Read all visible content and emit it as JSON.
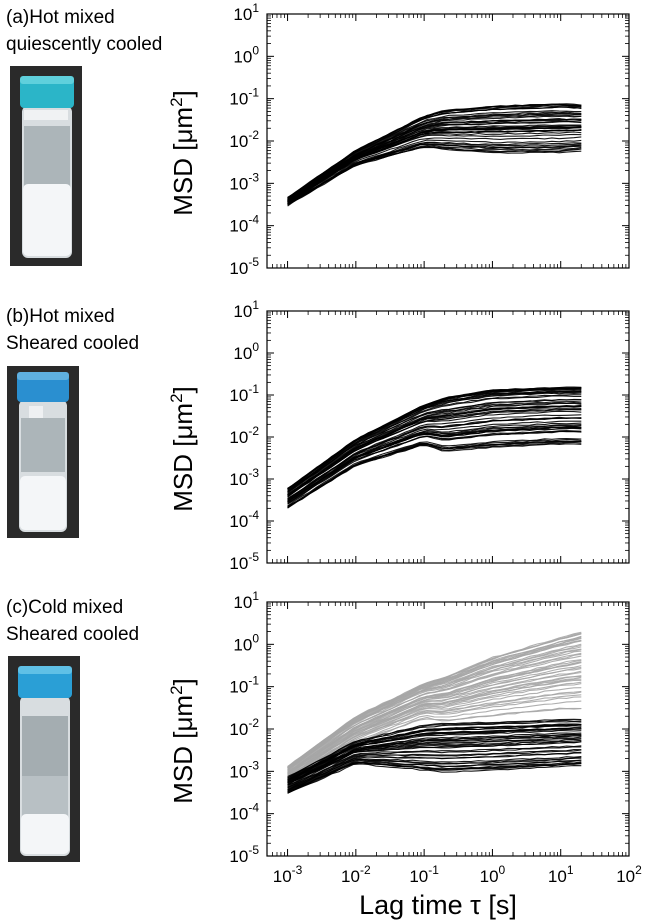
{
  "figure": {
    "panels": [
      {
        "id": "a",
        "label_line1": "(a)Hot mixed",
        "label_line2": "quiescently cooled"
      },
      {
        "id": "b",
        "label_line1": "(b)Hot mixed",
        "label_line2": "Sheared cooled"
      },
      {
        "id": "c",
        "label_line1": "(c)Cold mixed",
        "label_line2": "Sheared cooled"
      }
    ],
    "colors": {
      "black_series": "#000000",
      "gray_series": "#a6a6a6",
      "vial_cap": "#2bb5c8",
      "vial_bg": "#2a2a2a"
    }
  },
  "chart_data": [
    {
      "type": "line",
      "panel": "a",
      "ylabel_base": "MSD [",
      "ylabel_unit": "μm",
      "ylabel_exp": "2",
      "ylabel_tail": "]",
      "xscale": "log",
      "yscale": "log",
      "xlim": [
        0.0005,
        100
      ],
      "ylim": [
        1e-05,
        10
      ],
      "yticks": [
        1e-05,
        0.0001,
        0.001,
        0.01,
        0.1,
        1,
        10
      ],
      "ytick_labels": [
        {
          "base": "10",
          "exp": "-5"
        },
        {
          "base": "10",
          "exp": "-4"
        },
        {
          "base": "10",
          "exp": "-3"
        },
        {
          "base": "10",
          "exp": "-2"
        },
        {
          "base": "10",
          "exp": "-1"
        },
        {
          "base": "10",
          "exp": "0"
        },
        {
          "base": "10",
          "exp": "1"
        }
      ],
      "series": [
        {
          "color": "black",
          "envelope_x": [
            0.001,
            0.01,
            0.1,
            0.2,
            1,
            10,
            20
          ],
          "upper": [
            0.00045,
            0.006,
            0.04,
            0.055,
            0.07,
            0.08,
            0.075
          ],
          "lower": [
            0.0003,
            0.0025,
            0.006,
            0.005,
            0.004,
            0.004,
            0.0045
          ],
          "count": 45
        }
      ]
    },
    {
      "type": "line",
      "panel": "b",
      "ylabel_base": "MSD [",
      "ylabel_unit": "μm",
      "ylabel_exp": "2",
      "ylabel_tail": "]",
      "xscale": "log",
      "yscale": "log",
      "xlim": [
        0.0005,
        100
      ],
      "ylim": [
        1e-05,
        10
      ],
      "yticks": [
        1e-05,
        0.0001,
        0.001,
        0.01,
        0.1,
        1,
        10
      ],
      "ytick_labels": [
        {
          "base": "10",
          "exp": "-5"
        },
        {
          "base": "10",
          "exp": "-4"
        },
        {
          "base": "10",
          "exp": "-3"
        },
        {
          "base": "10",
          "exp": "-2"
        },
        {
          "base": "10",
          "exp": "-1"
        },
        {
          "base": "10",
          "exp": "0"
        },
        {
          "base": "10",
          "exp": "1"
        }
      ],
      "series": [
        {
          "color": "black",
          "envelope_x": [
            0.001,
            0.01,
            0.1,
            0.2,
            1,
            10,
            20
          ],
          "upper": [
            0.0006,
            0.009,
            0.06,
            0.09,
            0.14,
            0.16,
            0.16
          ],
          "lower": [
            0.0002,
            0.002,
            0.006,
            0.004,
            0.005,
            0.006,
            0.006
          ],
          "count": 50
        }
      ]
    },
    {
      "type": "line",
      "panel": "c",
      "ylabel_base": "MSD [",
      "ylabel_unit": "μm",
      "ylabel_exp": "2",
      "ylabel_tail": "]",
      "xlabel": "Lag time τ [s]",
      "xscale": "log",
      "yscale": "log",
      "xlim": [
        0.0005,
        100
      ],
      "ylim": [
        1e-05,
        10
      ],
      "xticks": [
        0.001,
        0.01,
        0.1,
        1,
        10,
        100
      ],
      "xtick_labels": [
        {
          "base": "10",
          "exp": "-3"
        },
        {
          "base": "10",
          "exp": "-2"
        },
        {
          "base": "10",
          "exp": "-1"
        },
        {
          "base": "10",
          "exp": "0"
        },
        {
          "base": "10",
          "exp": "1"
        },
        {
          "base": "10",
          "exp": "2"
        }
      ],
      "yticks": [
        1e-05,
        0.0001,
        0.001,
        0.01,
        0.1,
        1,
        10
      ],
      "ytick_labels": [
        {
          "base": "10",
          "exp": "-5"
        },
        {
          "base": "10",
          "exp": "-4"
        },
        {
          "base": "10",
          "exp": "-3"
        },
        {
          "base": "10",
          "exp": "-2"
        },
        {
          "base": "10",
          "exp": "-1"
        },
        {
          "base": "10",
          "exp": "0"
        },
        {
          "base": "10",
          "exp": "1"
        }
      ],
      "series": [
        {
          "color": "gray",
          "envelope_x": [
            0.001,
            0.01,
            0.1,
            0.2,
            1,
            10,
            20
          ],
          "upper": [
            0.0013,
            0.02,
            0.12,
            0.17,
            0.5,
            1.5,
            2
          ],
          "lower": [
            0.0005,
            0.004,
            0.015,
            0.012,
            0.015,
            0.02,
            0.02
          ],
          "count": 45
        },
        {
          "color": "black",
          "envelope_x": [
            0.001,
            0.01,
            0.1,
            0.2,
            1,
            10,
            20
          ],
          "upper": [
            0.0007,
            0.005,
            0.012,
            0.013,
            0.014,
            0.016,
            0.016
          ],
          "lower": [
            0.0003,
            0.0015,
            0.001,
            0.0009,
            0.001,
            0.0012,
            0.0013
          ],
          "count": 40
        }
      ]
    }
  ]
}
